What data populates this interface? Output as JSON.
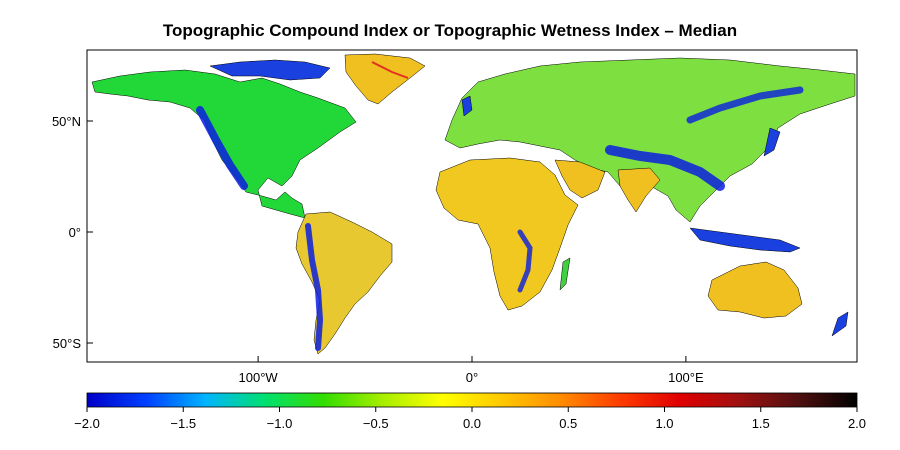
{
  "title": "Topographic Compound Index or Topographic Wetness Index – Median",
  "map": {
    "projection": "equirectangular",
    "lat_ticks": [
      {
        "value": 50,
        "label": "50°N"
      },
      {
        "value": 0,
        "label": "0°"
      },
      {
        "value": -50,
        "label": "50°S"
      }
    ],
    "lon_ticks": [
      {
        "value": -100,
        "label": "100°W"
      },
      {
        "value": 0,
        "label": "0°"
      },
      {
        "value": 100,
        "label": "100°E"
      }
    ]
  },
  "colorbar": {
    "min": -2.0,
    "max": 2.0,
    "tick_labels": [
      "−2.0",
      "−1.5",
      "−1.0",
      "−0.5",
      "0.0",
      "0.5",
      "1.0",
      "1.5",
      "2.0"
    ],
    "tick_values": [
      -2.0,
      -1.5,
      -1.0,
      -0.5,
      0.0,
      0.5,
      1.0,
      1.5,
      2.0
    ],
    "colors": [
      "#0000c8",
      "#0040ff",
      "#00b4ff",
      "#00e070",
      "#33dd00",
      "#a8ee00",
      "#ffff00",
      "#ffc800",
      "#ff8c00",
      "#ff3c00",
      "#e00000",
      "#a01010",
      "#501010",
      "#000000"
    ]
  }
}
